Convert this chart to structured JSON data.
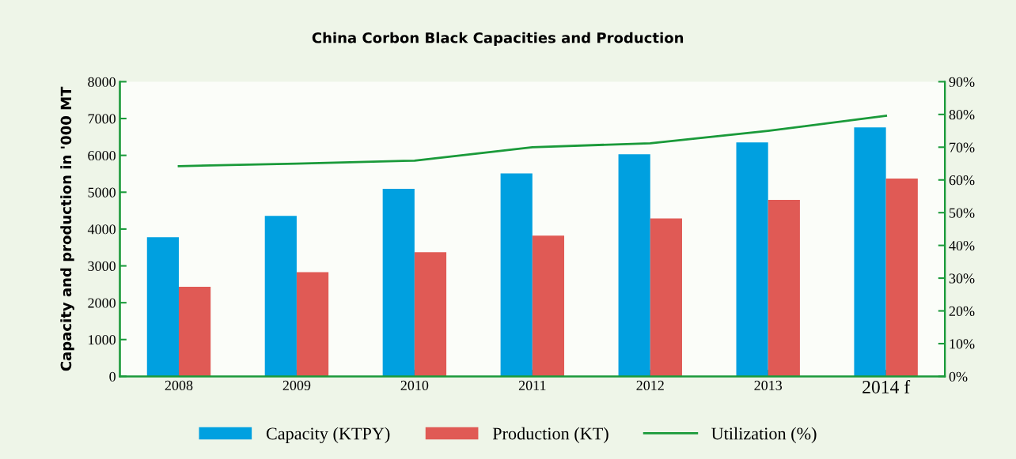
{
  "chart_data": {
    "type": "bar",
    "title": "China Corbon Black Capacities and Production",
    "ylabel": "Capacity and production in '000 MT",
    "categories": [
      "2008",
      "2009",
      "2010",
      "2011",
      "2012",
      "2013",
      "2014 f"
    ],
    "series": [
      {
        "name": "Capacity (KTPY)",
        "color": "#00a0e0",
        "values": [
          3780,
          4360,
          5090,
          5510,
          6030,
          6350,
          6760
        ]
      },
      {
        "name": "Production (KT)",
        "color": "#e05a55",
        "values": [
          2430,
          2830,
          3370,
          3820,
          4290,
          4790,
          5370
        ]
      },
      {
        "name": "Utilization (%)",
        "color": "#1a9a3a",
        "type": "line",
        "axis": "y2",
        "values": [
          64.2,
          65,
          65.9,
          70,
          71.2,
          75,
          79.6
        ]
      }
    ],
    "ylim": [
      0,
      8000
    ],
    "yticks": [
      0,
      1000,
      2000,
      3000,
      4000,
      5000,
      6000,
      7000,
      8000
    ],
    "y2lim": [
      0,
      90
    ],
    "y2ticks": [
      {
        "value": 0,
        "label": "0%"
      },
      {
        "value": 10,
        "label": "10%"
      },
      {
        "value": 20,
        "label": "20%"
      },
      {
        "value": 30,
        "label": "30%"
      },
      {
        "value": 40,
        "label": "40%"
      },
      {
        "value": 50,
        "label": "50%"
      },
      {
        "value": 60,
        "label": "60%"
      },
      {
        "value": 70,
        "label": "70%"
      },
      {
        "value": 80,
        "label": "80%"
      },
      {
        "value": 90,
        "label": "90%"
      }
    ],
    "legend": "bottom",
    "grid": false
  }
}
